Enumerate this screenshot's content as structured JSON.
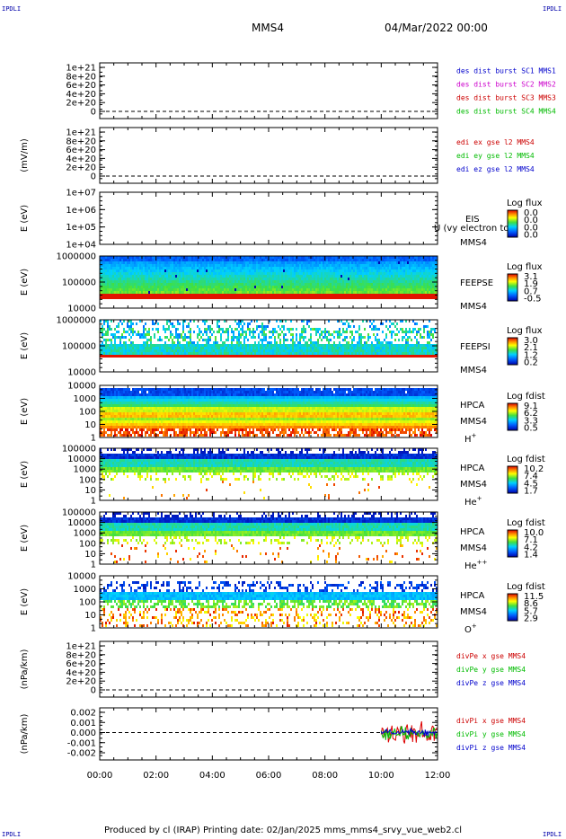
{
  "corner_label": "IPDLI",
  "header": {
    "title": "MMS4",
    "datetime": "04/Mar/2022 00:00"
  },
  "footer": {
    "text": "Produced by cl (IRAP)   Printing date: 02/Jan/2025   mms_mms4_srvy_vue_web2.cl"
  },
  "chart_data": {
    "type": "heatmap",
    "x_ticks": [
      "00:00",
      "02:00",
      "04:00",
      "06:00",
      "08:00",
      "10:00",
      "12:00"
    ],
    "xlim_hours": [
      0,
      12
    ],
    "panels": [
      {
        "id": "p1",
        "ylabel": "",
        "yticks": [
          "1e+21",
          "8e+20",
          "6e+20",
          "4e+20",
          "2e+20",
          "0"
        ],
        "legend": [
          {
            "text": "des dist burst SC1 MMS1",
            "color": "#0000cc"
          },
          {
            "text": "des dist burst SC2 MMS2",
            "color": "#cc00cc"
          },
          {
            "text": "des dist burst SC3 MMS3",
            "color": "#cc0000"
          },
          {
            "text": "des dist burst SC4 MMS4",
            "color": "#00bb00"
          }
        ]
      },
      {
        "id": "p2",
        "ylabel": "(mV/m)",
        "yticks": [
          "1e+21",
          "8e+20",
          "6e+20",
          "4e+20",
          "2e+20",
          "0"
        ],
        "legend": [
          {
            "text": "edi ex gse l2 MMS4",
            "color": "#cc0000"
          },
          {
            "text": "edi ey gse l2 MMS4",
            "color": "#00bb00"
          },
          {
            "text": "edi ez gse l2 MMS4",
            "color": "#0000cc"
          }
        ]
      },
      {
        "id": "p3",
        "ylabel": "E (eV)",
        "yticks": [
          "1e+07",
          "1e+06",
          "1e+05",
          "1e+04"
        ],
        "side": [
          "EIS",
          "MMS4"
        ],
        "overlay": "Ù (vy electron to",
        "cbar_title": "Log flux",
        "cbar_ticks": [
          "0.0",
          "0.0",
          "0.0",
          "0.0"
        ]
      },
      {
        "id": "p4",
        "ylabel": "E (eV)",
        "yticks": [
          "1000000",
          "100000",
          "10000"
        ],
        "side": [
          "FEEPSE",
          "MMS4"
        ],
        "cbar_title": "Log flux",
        "cbar_ticks": [
          "3.1",
          "1.9",
          "0.7",
          "-0.5"
        ]
      },
      {
        "id": "p5",
        "ylabel": "E (eV)",
        "yticks": [
          "1000000",
          "100000",
          "10000"
        ],
        "side": [
          "FEEPSI",
          "MMS4"
        ],
        "cbar_title": "Log flux",
        "cbar_ticks": [
          "3.0",
          "2.1",
          "1.2",
          "0.2"
        ]
      },
      {
        "id": "p6",
        "ylabel": "E (eV)",
        "yticks": [
          "10000",
          "1000",
          "100",
          "10",
          "1"
        ],
        "side": [
          "HPCA",
          "MMS4"
        ],
        "species": "H",
        "species_sup": "+",
        "cbar_title": "Log fdist",
        "cbar_ticks": [
          "9.1",
          "6.2",
          "3.3",
          "0.5"
        ]
      },
      {
        "id": "p7",
        "ylabel": "E (eV)",
        "yticks": [
          "100000",
          "10000",
          "1000",
          "100",
          "10",
          "1"
        ],
        "side": [
          "HPCA",
          "MMS4"
        ],
        "species": "He",
        "species_sup": "+",
        "cbar_title": "Log fdist",
        "cbar_ticks": [
          "10.2",
          "7.4",
          "4.5",
          "1.7"
        ]
      },
      {
        "id": "p8",
        "ylabel": "E (eV)",
        "yticks": [
          "100000",
          "10000",
          "1000",
          "100",
          "10",
          "1"
        ],
        "side": [
          "HPCA",
          "MMS4"
        ],
        "species": "He",
        "species_sup": "++",
        "cbar_title": "Log fdist",
        "cbar_ticks": [
          "10.0",
          "7.1",
          "4.2",
          "1.4"
        ]
      },
      {
        "id": "p9",
        "ylabel": "E (eV)",
        "yticks": [
          "10000",
          "1000",
          "100",
          "10",
          "1"
        ],
        "side": [
          "HPCA",
          "MMS4"
        ],
        "species": "O",
        "species_sup": "+",
        "cbar_title": "Log fdist",
        "cbar_ticks": [
          "11.5",
          "8.6",
          "5.7",
          "2.9"
        ]
      },
      {
        "id": "p10",
        "ylabel": "(nPa/km)",
        "yticks": [
          "1e+21",
          "8e+20",
          "6e+20",
          "4e+20",
          "2e+20",
          "0"
        ],
        "legend": [
          {
            "text": "divPe x gse MMS4",
            "color": "#cc0000"
          },
          {
            "text": "divPe y gse MMS4",
            "color": "#00bb00"
          },
          {
            "text": "divPe z gse MMS4",
            "color": "#0000cc"
          }
        ]
      },
      {
        "id": "p11",
        "ylabel": "(nPa/km)",
        "yticks": [
          "0.002",
          "0.001",
          "0.000",
          "-0.001",
          "-0.002"
        ],
        "legend": [
          {
            "text": "divPi x gse MMS4",
            "color": "#cc0000"
          },
          {
            "text": "divPi y gse MMS4",
            "color": "#00bb00"
          },
          {
            "text": "divPi z gse MMS4",
            "color": "#0000cc"
          }
        ],
        "data_start_hour": 10.0
      }
    ]
  }
}
